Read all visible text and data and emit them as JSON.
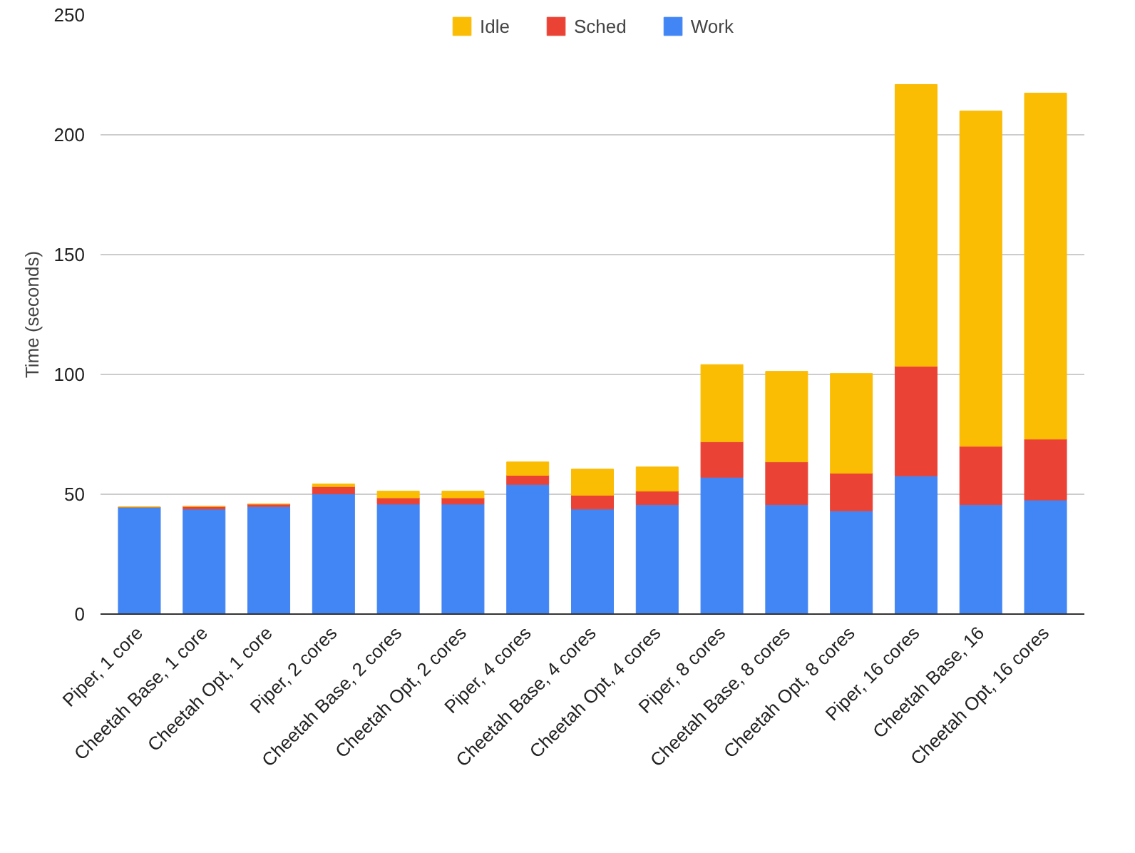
{
  "chart_data": {
    "type": "bar",
    "stacked": true,
    "ylabel": "Time (seconds)",
    "categories": [
      "Piper, 1 core",
      "Cheetah Base, 1 core",
      "Cheetah Opt, 1 core",
      "Piper, 2 cores",
      "Cheetah Base, 2 cores",
      "Cheetah Opt, 2 cores",
      "Piper, 4 cores",
      "Cheetah Base, 4 cores",
      "Cheetah Opt, 4 cores",
      "Piper, 8 cores",
      "Cheetah Base, 8 cores",
      "Cheetah Opt, 8 cores",
      "Piper, 16 cores",
      "Cheetah Base, 16",
      "Cheetah Opt, 16 cores"
    ],
    "series": [
      {
        "name": "Work",
        "color": "#4285f4",
        "values": [
          44.7,
          43.8,
          44.9,
          50.2,
          45.9,
          45.9,
          54.1,
          43.8,
          45.7,
          57.1,
          45.7,
          43.1,
          57.7,
          45.7,
          47.6
        ]
      },
      {
        "name": "Sched",
        "color": "#ea4335",
        "values": [
          0,
          1.1,
          1.0,
          3.0,
          2.6,
          2.6,
          3.8,
          5.8,
          5.6,
          14.8,
          17.8,
          15.7,
          45.7,
          24.3,
          25.4
        ]
      },
      {
        "name": "Idle",
        "color": "#fbbc04",
        "values": [
          0,
          0,
          0,
          1.1,
          2.8,
          2.8,
          5.6,
          10.9,
          10.1,
          32.2,
          37.8,
          41.6,
          117.6,
          139.9,
          144.4
        ]
      }
    ],
    "ylim": [
      0,
      250
    ],
    "yticks": [
      0,
      50,
      100,
      150,
      200,
      250
    ],
    "grid": "y",
    "legend": "top"
  }
}
